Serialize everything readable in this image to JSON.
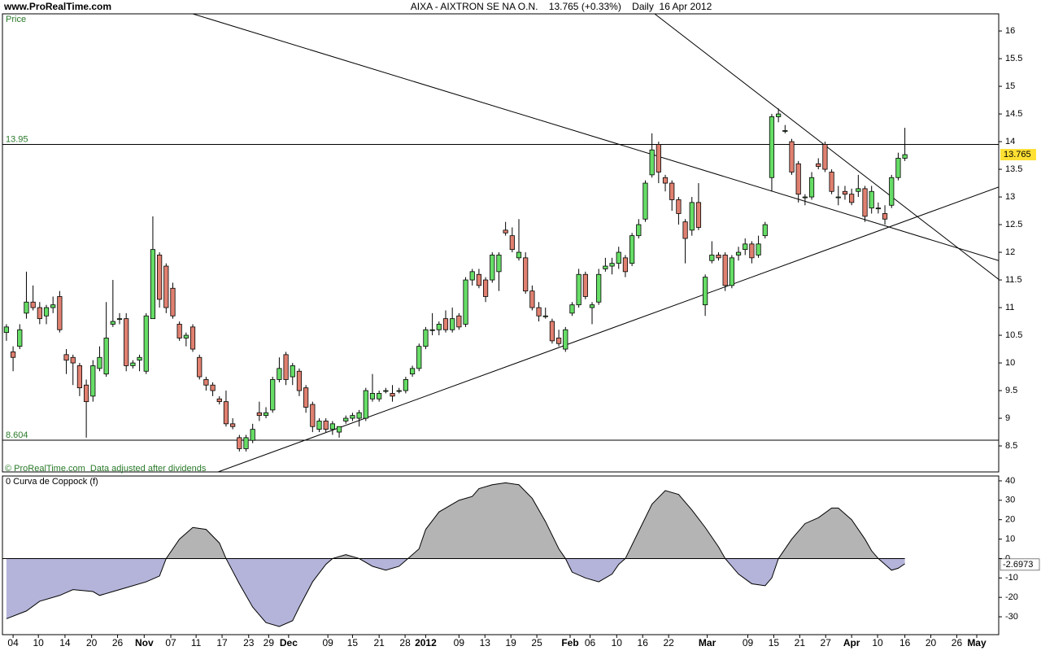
{
  "header": "www.ProRealTime.com",
  "chart_data": [
    {
      "type": "candlestick",
      "title": "AIXA - AIXTRON SE NA O.N.    13.765 (+0.33%)    Daily  16 Apr 2012",
      "panel_label": "Price",
      "note": "© ProRealTime.com  Data adjusted after dividends",
      "open": [
        10.55,
        10.2,
        10.3,
        10.9,
        11.1,
        11.0,
        10.85,
        11.0,
        11.2,
        10.15,
        10.1,
        9.95,
        9.6,
        9.4,
        9.9,
        9.8,
        10.7,
        10.8,
        10.8,
        9.95,
        10.05,
        9.85,
        10.8,
        11.95,
        11.75,
        11.35,
        10.7,
        10.45,
        10.65,
        10.1,
        9.7,
        9.6,
        9.35,
        9.3,
        8.9,
        8.65,
        8.45,
        8.6,
        9.1,
        9.05,
        9.15,
        9.7,
        10.15,
        9.75,
        9.85,
        9.55,
        9.25,
        8.8,
        8.95,
        8.8,
        8.75,
        8.95,
        9.0,
        9.0,
        9.0,
        9.35,
        9.35,
        9.5,
        9.45,
        9.5,
        9.5,
        9.8,
        9.9,
        10.3,
        10.6,
        10.6,
        10.8,
        10.6,
        10.85,
        10.7,
        11.5,
        11.6,
        11.5,
        11.5,
        11.65,
        12.4,
        12.3,
        11.9,
        11.9,
        11.3,
        11.0,
        10.85,
        10.75,
        10.45,
        10.25,
        10.9,
        11.05,
        11.6,
        11.0,
        11.1,
        11.7,
        11.75,
        11.8,
        11.9,
        11.8,
        12.3,
        12.6,
        13.4,
        13.95,
        13.35,
        13.25,
        12.95,
        12.55,
        12.4,
        12.9,
        11.05,
        11.85,
        11.95,
        11.95,
        11.4,
        11.95,
        12.05,
        12.15,
        11.95,
        12.3,
        13.35,
        14.45,
        14.2,
        14.0,
        13.6,
        13.0,
        13.0,
        13.6,
        13.95,
        13.45,
        13.0,
        13.1,
        13.05,
        13.1,
        13.15,
        12.8,
        12.8,
        12.7,
        12.85,
        13.35,
        13.7
      ],
      "high": [
        10.7,
        10.3,
        10.7,
        11.65,
        11.4,
        11.1,
        11.05,
        11.2,
        11.3,
        10.25,
        10.15,
        10.0,
        9.7,
        10.05,
        10.3,
        11.1,
        11.5,
        10.9,
        10.9,
        10.05,
        10.15,
        10.9,
        12.65,
        12.0,
        11.8,
        11.45,
        10.75,
        10.55,
        10.7,
        10.15,
        9.75,
        9.65,
        9.4,
        9.5,
        9.0,
        8.7,
        8.7,
        8.9,
        9.3,
        9.2,
        9.75,
        10.1,
        10.2,
        10.0,
        9.9,
        9.6,
        9.3,
        9.0,
        9.0,
        8.95,
        8.85,
        9.05,
        9.1,
        9.15,
        9.55,
        9.8,
        9.5,
        9.55,
        9.6,
        9.55,
        9.75,
        9.95,
        10.35,
        10.65,
        10.9,
        10.75,
        10.95,
        11.0,
        10.9,
        11.55,
        11.7,
        11.7,
        11.55,
        12.0,
        12.0,
        12.55,
        12.45,
        12.6,
        12.0,
        11.4,
        11.1,
        11.0,
        10.8,
        10.6,
        10.65,
        11.1,
        11.7,
        11.65,
        11.1,
        11.7,
        11.9,
        11.9,
        12.1,
        11.95,
        12.35,
        12.6,
        13.3,
        14.15,
        14.0,
        13.4,
        13.3,
        13.0,
        12.6,
        13.0,
        13.25,
        11.6,
        12.2,
        12.0,
        12.0,
        11.95,
        12.1,
        12.25,
        12.2,
        12.3,
        12.55,
        14.5,
        14.6,
        14.3,
        14.05,
        13.65,
        13.05,
        13.45,
        13.7,
        14.0,
        13.5,
        13.2,
        13.2,
        13.15,
        13.4,
        13.2,
        13.2,
        12.9,
        12.85,
        13.4,
        13.8,
        14.25
      ],
      "low": [
        10.4,
        9.85,
        10.25,
        10.8,
        10.95,
        10.7,
        10.7,
        10.9,
        10.55,
        9.8,
        9.6,
        9.4,
        8.65,
        9.3,
        9.85,
        9.75,
        10.65,
        10.7,
        9.85,
        9.9,
        9.85,
        9.8,
        10.8,
        11.0,
        10.9,
        10.8,
        10.4,
        10.3,
        10.2,
        9.7,
        9.5,
        9.4,
        9.25,
        8.85,
        8.8,
        8.4,
        8.4,
        8.55,
        8.95,
        9.0,
        9.1,
        9.65,
        9.6,
        9.6,
        9.4,
        9.1,
        8.75,
        8.75,
        8.75,
        8.7,
        8.65,
        8.9,
        8.95,
        8.85,
        8.95,
        9.3,
        9.3,
        9.45,
        9.3,
        9.45,
        9.45,
        9.75,
        9.85,
        10.25,
        10.5,
        10.5,
        10.55,
        10.55,
        10.6,
        10.65,
        11.4,
        11.35,
        11.1,
        11.45,
        11.3,
        12.3,
        12.0,
        11.85,
        11.25,
        10.95,
        10.75,
        10.8,
        10.35,
        10.3,
        10.2,
        10.85,
        11.0,
        11.15,
        10.7,
        11.05,
        11.65,
        11.6,
        11.7,
        11.55,
        11.75,
        12.25,
        12.55,
        13.35,
        13.25,
        13.1,
        12.75,
        12.5,
        11.8,
        12.3,
        12.4,
        10.85,
        11.8,
        11.85,
        11.3,
        11.35,
        11.85,
        11.95,
        11.8,
        11.9,
        12.25,
        13.1,
        14.35,
        14.15,
        13.4,
        12.9,
        12.85,
        12.95,
        13.5,
        13.45,
        13.05,
        12.85,
        12.95,
        12.85,
        13.0,
        12.55,
        12.7,
        12.7,
        12.5,
        12.8,
        13.3,
        13.65
      ],
      "close": [
        10.65,
        10.1,
        10.6,
        11.1,
        11.0,
        10.8,
        11.0,
        11.05,
        10.6,
        10.05,
        10.0,
        9.55,
        9.3,
        9.95,
        10.1,
        10.45,
        10.75,
        10.8,
        9.95,
        10.0,
        10.1,
        10.85,
        12.05,
        11.15,
        11.0,
        10.85,
        10.45,
        10.5,
        10.25,
        9.75,
        9.6,
        9.5,
        9.3,
        8.9,
        8.85,
        8.45,
        8.65,
        8.8,
        9.05,
        9.1,
        9.7,
        9.9,
        9.7,
        9.95,
        9.5,
        9.2,
        8.85,
        8.95,
        8.8,
        8.9,
        8.85,
        9.0,
        9.05,
        9.1,
        9.5,
        9.45,
        9.45,
        9.5,
        9.4,
        9.5,
        9.7,
        9.9,
        10.3,
        10.6,
        10.6,
        10.7,
        10.6,
        10.8,
        10.65,
        11.5,
        11.65,
        11.4,
        11.2,
        11.95,
        11.95,
        12.35,
        12.05,
        12.0,
        11.3,
        11.0,
        10.85,
        10.85,
        10.4,
        10.35,
        10.6,
        11.05,
        11.6,
        11.2,
        11.05,
        11.6,
        11.75,
        11.8,
        12.0,
        11.65,
        12.3,
        12.5,
        13.25,
        13.85,
        13.45,
        13.25,
        12.95,
        12.7,
        12.25,
        12.9,
        12.45,
        11.55,
        11.95,
        11.9,
        11.4,
        11.9,
        12.0,
        12.15,
        11.9,
        12.15,
        12.5,
        14.45,
        14.5,
        14.2,
        13.45,
        13.05,
        13.0,
        13.35,
        13.55,
        13.5,
        13.1,
        13.0,
        13.05,
        12.9,
        13.15,
        12.65,
        13.1,
        12.8,
        12.6,
        13.35,
        13.7,
        13.765
      ],
      "up_color": "#66dd66",
      "down_color": "#e08070",
      "xlim": [
        -0.6,
        149.1
      ],
      "xticks": [
        {
          "value": 1,
          "label": "04"
        },
        {
          "value": 4.8,
          "label": "10"
        },
        {
          "value": 8.8,
          "label": "14"
        },
        {
          "value": 12.8,
          "label": "20"
        },
        {
          "value": 16.7,
          "label": "26"
        },
        {
          "value": 20.7,
          "label": "Nov"
        },
        {
          "value": 24.7,
          "label": "07"
        },
        {
          "value": 28.5,
          "label": "11"
        },
        {
          "value": 32.4,
          "label": "17"
        },
        {
          "value": 36.4,
          "label": "23"
        },
        {
          "value": 39.4,
          "label": "29"
        },
        {
          "value": 42.4,
          "label": "Dec"
        },
        {
          "value": 48.3,
          "label": "09"
        },
        {
          "value": 52,
          "label": "15"
        },
        {
          "value": 56,
          "label": "21"
        },
        {
          "value": 59.9,
          "label": "28"
        },
        {
          "value": 63,
          "label": "2012"
        },
        {
          "value": 68,
          "label": "09"
        },
        {
          "value": 71.9,
          "label": "13"
        },
        {
          "value": 75.8,
          "label": "19"
        },
        {
          "value": 79.7,
          "label": "25"
        },
        {
          "value": 84.7,
          "label": "Feb"
        },
        {
          "value": 87.7,
          "label": "06"
        },
        {
          "value": 91.7,
          "label": "10"
        },
        {
          "value": 95.6,
          "label": "16"
        },
        {
          "value": 99.5,
          "label": "22"
        },
        {
          "value": 105.3,
          "label": "Mar"
        },
        {
          "value": 111.4,
          "label": "09"
        },
        {
          "value": 115.3,
          "label": "15"
        },
        {
          "value": 119.2,
          "label": "21"
        },
        {
          "value": 123.1,
          "label": "27"
        },
        {
          "value": 127,
          "label": "Apr"
        },
        {
          "value": 130.9,
          "label": "10"
        },
        {
          "value": 135,
          "label": "16"
        },
        {
          "value": 138.9,
          "label": "20"
        },
        {
          "value": 142.8,
          "label": "26"
        },
        {
          "value": 145.8,
          "label": "May"
        }
      ],
      "ylim": [
        8.03,
        16.31
      ],
      "yticks": [
        8.5,
        9,
        9.5,
        10,
        10.5,
        11,
        11.5,
        12,
        12.5,
        13,
        13.5,
        14,
        14.5,
        15,
        15.5,
        16
      ],
      "hlines": [
        13.95,
        8.604
      ],
      "trendlines": [
        [
          [
            28.0,
            16.31
          ],
          [
            149.1,
            11.85
          ]
        ],
        [
          [
            31.8,
            8.03
          ],
          [
            149.1,
            13.18
          ]
        ],
        [
          [
            97.4,
            16.31
          ],
          [
            149.1,
            11.51
          ]
        ]
      ]
    },
    {
      "type": "area",
      "title": "0 Curva de Coppock (f)",
      "x": [
        0,
        3,
        5,
        8,
        10,
        13,
        14,
        16,
        18,
        21,
        23,
        24,
        26,
        28,
        30,
        32,
        33,
        35,
        37,
        39,
        41,
        43,
        44,
        46,
        48,
        49,
        51,
        53,
        55,
        57,
        59,
        60,
        62,
        63,
        65,
        68,
        70,
        71,
        73,
        75,
        77,
        79,
        81,
        83,
        84,
        85,
        87,
        89,
        91,
        92,
        93,
        95,
        97,
        99,
        101,
        103,
        105,
        107,
        108,
        110,
        112,
        114,
        115,
        116,
        118,
        120,
        122,
        124,
        125,
        127,
        129,
        130,
        131,
        132,
        133,
        134,
        135
      ],
      "values": [
        -31,
        -27,
        -22,
        -19,
        -16,
        -17,
        -19,
        -17,
        -15,
        -12,
        -9,
        0,
        10,
        16,
        15,
        8,
        0,
        -13,
        -25,
        -33,
        -35,
        -32,
        -25,
        -12,
        -3,
        0,
        2,
        0,
        -4,
        -6,
        -4,
        -1,
        5,
        15,
        24,
        30,
        32,
        36,
        38,
        39,
        38,
        31,
        19,
        5,
        0,
        -7,
        -10,
        -12,
        -8,
        -3,
        0,
        14,
        28,
        35,
        33,
        25,
        16,
        6,
        0,
        -8,
        -13,
        -14,
        -10,
        0,
        10,
        18,
        21,
        26,
        26,
        20,
        10,
        4,
        0,
        -3,
        -6,
        -5,
        -2.6973
      ],
      "pos_color": "#b4b4b4",
      "neg_color": "#b4b4da",
      "ylim": [
        -39.2,
        42.5
      ],
      "yticks": [
        -30,
        -20,
        -10,
        0,
        10,
        20,
        30,
        40
      ]
    }
  ]
}
